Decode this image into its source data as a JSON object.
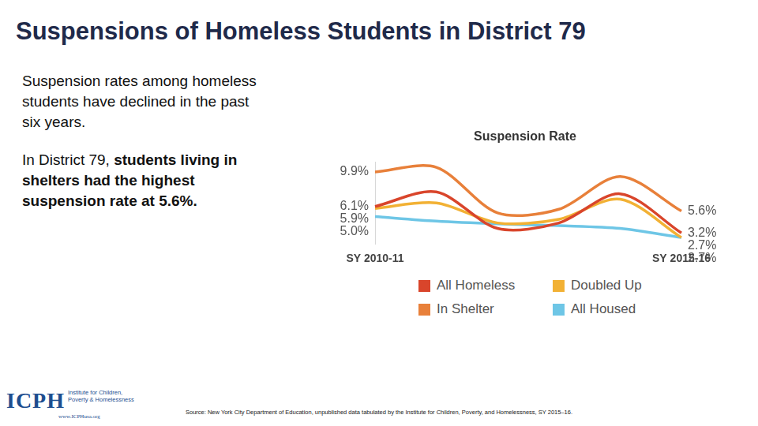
{
  "slide": {
    "title": "Suspensions of Homeless Students in District 79",
    "paragraphs": [
      [
        {
          "text": "Suspension rates among homeless students have declined in the past six years."
        }
      ],
      [
        {
          "text": "In District 79, "
        },
        {
          "text": "students living in shelters had the highest suspension rate at 5.6%.",
          "bold": true
        }
      ]
    ],
    "source": "Source: New York City Department of Education, unpublished data tabulated by the Institute for Children, Poverty, and Homelessness, SY 2015–16.",
    "logo": {
      "mark": "ICPH",
      "lines": [
        "Institute for Children,",
        "Poverty & Homelessness"
      ],
      "url": "www.ICPHusa.org"
    }
  },
  "chart_data": {
    "type": "line",
    "title": "Suspension Rate",
    "categories": [
      "SY 2010-11",
      null,
      null,
      null,
      null,
      "SY 2015-16"
    ],
    "series": [
      {
        "name": "All Homeless",
        "color": "#d9452b",
        "values": [
          6.1,
          7.7,
          3.7,
          4.3,
          7.5,
          3.2
        ],
        "value_labels": [
          "6.1%",
          null,
          null,
          null,
          null,
          "3.2%"
        ]
      },
      {
        "name": "Doubled Up",
        "color": "#f2b134",
        "values": [
          5.9,
          6.5,
          4.3,
          4.7,
          6.9,
          2.7
        ],
        "value_labels": [
          "5.9%",
          null,
          null,
          null,
          null,
          "2.7%"
        ]
      },
      {
        "name": "In Shelter",
        "color": "#e8803a",
        "values": [
          9.9,
          10.4,
          5.4,
          5.8,
          9.4,
          5.6
        ],
        "value_labels": [
          "9.9%",
          null,
          null,
          null,
          null,
          "5.6%"
        ]
      },
      {
        "name": "All Housed",
        "color": "#6ec6e6",
        "values": [
          5.0,
          4.5,
          4.2,
          4.0,
          3.7,
          2.7
        ],
        "value_labels": [
          "5.0%",
          null,
          null,
          null,
          null,
          "2.7%"
        ]
      }
    ],
    "ylim": [
      2,
      11
    ],
    "tick_labels": "x",
    "grid": false,
    "legend": "bottom",
    "data_labels": true,
    "marker": "none"
  }
}
